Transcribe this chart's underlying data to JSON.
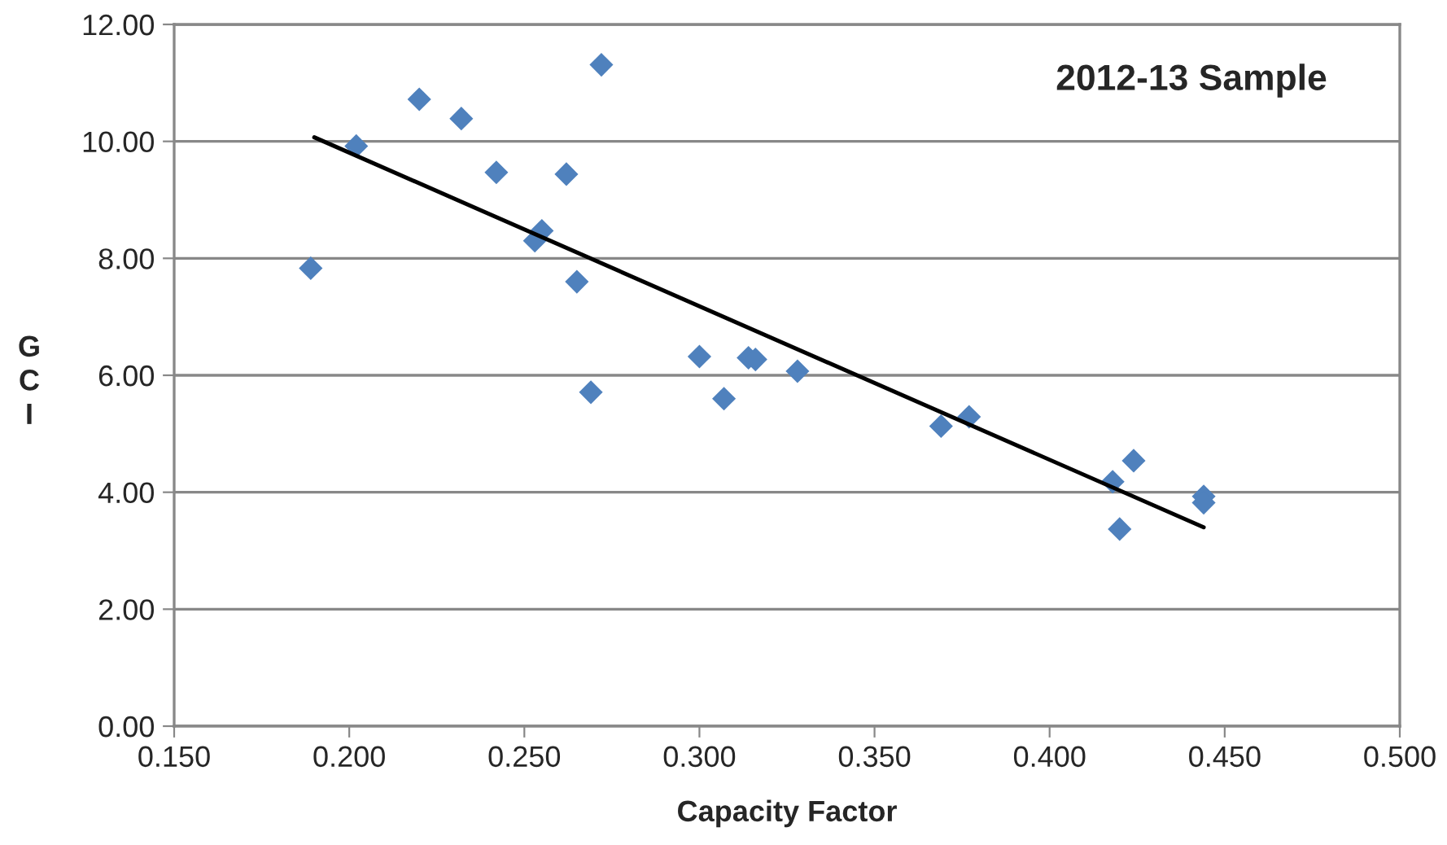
{
  "chart_data": {
    "type": "scatter",
    "title": "2012-13 Sample",
    "xlabel": "Capacity Factor",
    "ylabel": "G\nC\nI",
    "series": [
      {
        "color": "#4f81bd",
        "marker": "diamond",
        "x": [
          0.189,
          0.202,
          0.22,
          0.232,
          0.242,
          0.262,
          0.253,
          0.255,
          0.265,
          0.269,
          0.272,
          0.3,
          0.307,
          0.314,
          0.316,
          0.328,
          0.369,
          0.377,
          0.418,
          0.42,
          0.424,
          0.444,
          0.444
        ],
        "values": [
          7.83,
          9.92,
          10.72,
          10.39,
          9.47,
          9.44,
          8.3,
          8.47,
          7.6,
          5.71,
          11.31,
          6.32,
          5.6,
          6.3,
          6.27,
          6.07,
          5.13,
          5.29,
          4.18,
          3.37,
          4.54,
          3.93,
          3.82
        ]
      },
      {
        "type": "line",
        "color": "#000000",
        "marker": "none",
        "x": [
          0.19,
          0.444
        ],
        "values": [
          10.07,
          3.4
        ]
      }
    ],
    "xlim": [
      0.15,
      0.5
    ],
    "xticks": [
      {
        "value": 0.15,
        "label": "0.150"
      },
      {
        "value": 0.2,
        "label": "0.200"
      },
      {
        "value": 0.25,
        "label": "0.250"
      },
      {
        "value": 0.3,
        "label": "0.300"
      },
      {
        "value": 0.35,
        "label": "0.350"
      },
      {
        "value": 0.4,
        "label": "0.400"
      },
      {
        "value": 0.45,
        "label": "0.450"
      },
      {
        "value": 0.5,
        "label": "0.500"
      }
    ],
    "ylim": [
      0,
      12
    ],
    "yticks": [
      {
        "value": 0,
        "label": "0.00"
      },
      {
        "value": 2,
        "label": "2.00"
      },
      {
        "value": 4,
        "label": "4.00"
      },
      {
        "value": 6,
        "label": "6.00"
      },
      {
        "value": 8,
        "label": "8.00"
      },
      {
        "value": 10,
        "label": "10.00"
      },
      {
        "value": 12,
        "label": "12.00"
      }
    ],
    "grid": "y",
    "legend": false
  }
}
